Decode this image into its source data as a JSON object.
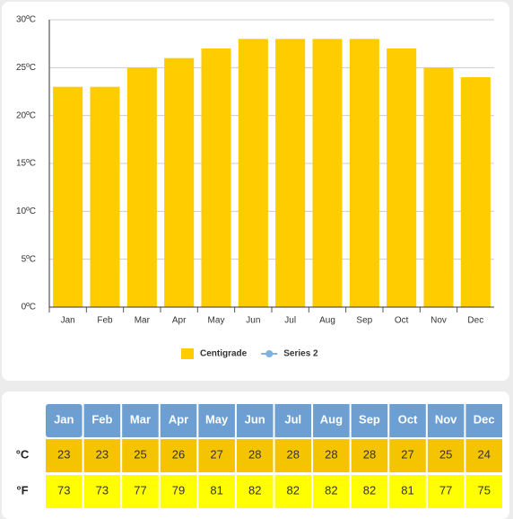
{
  "chart_data": {
    "type": "bar",
    "categories": [
      "Jan",
      "Feb",
      "Mar",
      "Apr",
      "May",
      "Jun",
      "Jul",
      "Aug",
      "Sep",
      "Oct",
      "Nov",
      "Dec"
    ],
    "series": [
      {
        "name": "Centigrade",
        "color": "#ffcc00",
        "values": [
          23,
          23,
          25,
          26,
          27,
          28,
          28,
          28,
          28,
          27,
          25,
          24
        ]
      },
      {
        "name": "Series 2",
        "color": "#7fb2e0",
        "values": [
          null,
          null,
          null,
          null,
          null,
          null,
          null,
          null,
          null,
          null,
          null,
          null
        ]
      }
    ],
    "ylim": [
      0,
      30
    ],
    "yticks": [
      {
        "value": 0,
        "label": "0ºC"
      },
      {
        "value": 5,
        "label": "5ºC"
      },
      {
        "value": 10,
        "label": "10ºC"
      },
      {
        "value": 15,
        "label": "15ºC"
      },
      {
        "value": 20,
        "label": "20ºC"
      },
      {
        "value": 25,
        "label": "25ºC"
      },
      {
        "value": 30,
        "label": "30ºC"
      }
    ],
    "grid": true
  },
  "table": {
    "header": [
      "Jan",
      "Feb",
      "Mar",
      "Apr",
      "May",
      "Jun",
      "Jul",
      "Aug",
      "Sep",
      "Oct",
      "Nov",
      "Dec"
    ],
    "rows": [
      {
        "label": "°C",
        "values": [
          23,
          23,
          25,
          26,
          27,
          28,
          28,
          28,
          28,
          27,
          25,
          24
        ]
      },
      {
        "label": "°F",
        "values": [
          73,
          73,
          77,
          79,
          81,
          82,
          82,
          82,
          82,
          81,
          77,
          75
        ]
      }
    ]
  }
}
